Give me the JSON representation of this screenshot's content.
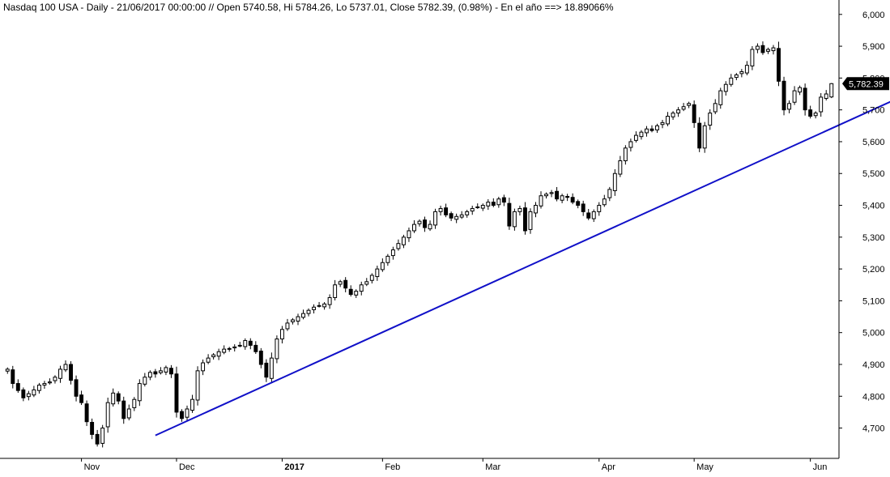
{
  "header": {
    "title": "Nasdaq 100 USA - Daily - 21/06/2017 00:00:00 // Open 5740.58, Hi 5784.26, Lo 5737.01, Close 5782.39, (0.98%) - En el año ==> 18.89066%"
  },
  "chart_data": {
    "type": "candlestick",
    "instrument": "Nasdaq 100 USA",
    "interval": "Daily",
    "ylim": [
      4620,
      6030
    ],
    "y_ticks": [
      "4,700",
      "4,800",
      "4,900",
      "5,000",
      "5,100",
      "5,200",
      "5,300",
      "5,400",
      "5,500",
      "5,600",
      "5,700",
      "5,800",
      "5,900",
      "6,000"
    ],
    "x_ticks": [
      {
        "label": "Nov",
        "index": 14
      },
      {
        "label": "Dec",
        "index": 32
      },
      {
        "label": "2017",
        "index": 52,
        "bold": true
      },
      {
        "label": "Feb",
        "index": 71
      },
      {
        "label": "Mar",
        "index": 90
      },
      {
        "label": "Apr",
        "index": 112
      },
      {
        "label": "May",
        "index": 130
      },
      {
        "label": "Jun",
        "index": 152
      }
    ],
    "last_price": {
      "label": "5,782.39",
      "value": 5782.39
    },
    "last_candle": {
      "open": 5740.58,
      "high": 5784.26,
      "low": 5737.01,
      "close": 5782.39
    },
    "trendline": {
      "from": {
        "index": 28,
        "value": 4677
      },
      "to": {
        "index": 170,
        "value": 5747
      },
      "color": "#1010c8"
    },
    "closes": [
      4885,
      4840,
      4818,
      4795,
      4808,
      4820,
      4835,
      4840,
      4845,
      4860,
      4885,
      4900,
      4850,
      4800,
      4780,
      4720,
      4680,
      4650,
      4700,
      4780,
      4810,
      4785,
      4730,
      4760,
      4790,
      4840,
      4860,
      4875,
      4870,
      4880,
      4890,
      4870,
      4750,
      4730,
      4760,
      4790,
      4880,
      4905,
      4920,
      4930,
      4940,
      4948,
      4950,
      4955,
      4960,
      4975,
      4960,
      4940,
      4900,
      4860,
      4920,
      4980,
      5010,
      5030,
      5040,
      5050,
      5060,
      5070,
      5080,
      5085,
      5090,
      5110,
      5150,
      5160,
      5140,
      5120,
      5130,
      5150,
      5160,
      5180,
      5200,
      5220,
      5240,
      5260,
      5280,
      5300,
      5320,
      5340,
      5350,
      5330,
      5340,
      5380,
      5390,
      5370,
      5360,
      5365,
      5370,
      5380,
      5390,
      5395,
      5400,
      5410,
      5400,
      5420,
      5410,
      5335,
      5380,
      5390,
      5320,
      5380,
      5400,
      5430,
      5435,
      5440,
      5420,
      5430,
      5425,
      5410,
      5400,
      5380,
      5360,
      5380,
      5400,
      5420,
      5450,
      5500,
      5540,
      5580,
      5600,
      5620,
      5630,
      5640,
      5635,
      5650,
      5660,
      5680,
      5690,
      5700,
      5710,
      5720,
      5660,
      5580,
      5650,
      5690,
      5720,
      5760,
      5780,
      5800,
      5810,
      5820,
      5840,
      5890,
      5900,
      5880,
      5890,
      5895,
      5790,
      5700,
      5720,
      5760,
      5770,
      5700,
      5680,
      5690,
      5740,
      5750,
      5782.39
    ]
  }
}
